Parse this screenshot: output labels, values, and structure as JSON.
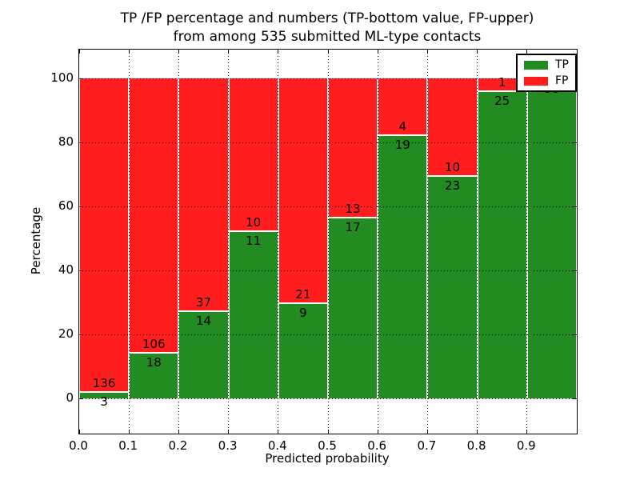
{
  "chart": {
    "title_line1": "TP /FP percentage and numbers (TP-bottom value, FP-upper)",
    "title_line2": "from among 535 submitted ML-type contacts",
    "xlabel": "Predicted probability",
    "ylabel": "Percentage"
  },
  "chart_data": {
    "type": "bar",
    "stacked": true,
    "normalized_to_percent": true,
    "title": "TP /FP percentage and numbers (TP-bottom value, FP-upper) from among 535 submitted ML-type contacts",
    "xlabel": "Predicted probability",
    "ylabel": "Percentage",
    "total_contacts": 535,
    "bins": [
      "0.0-0.1",
      "0.1-0.2",
      "0.2-0.3",
      "0.3-0.4",
      "0.4-0.5",
      "0.5-0.6",
      "0.6-0.7",
      "0.7-0.8",
      "0.8-0.9",
      "0.9-1.0"
    ],
    "x_start": [
      0.0,
      0.1,
      0.2,
      0.3,
      0.4,
      0.5,
      0.6,
      0.7,
      0.8,
      0.9
    ],
    "bar_width": 0.1,
    "series": [
      {
        "name": "TP",
        "color": "#228B22",
        "counts": [
          3,
          18,
          14,
          11,
          9,
          17,
          19,
          23,
          25,
          58
        ],
        "percent": [
          2.16,
          14.52,
          27.45,
          52.38,
          30.0,
          56.67,
          82.61,
          69.7,
          96.15,
          100.0
        ]
      },
      {
        "name": "FP",
        "color": "#FF1D1D",
        "counts": [
          136,
          106,
          37,
          10,
          21,
          13,
          4,
          10,
          1,
          0
        ],
        "percent": [
          97.84,
          85.48,
          72.55,
          47.62,
          70.0,
          43.33,
          17.39,
          30.3,
          3.85,
          0.0
        ]
      }
    ],
    "label_note": "FP count printed above TP/FP boundary, TP count below",
    "xlim": [
      0.0,
      1.0
    ],
    "ylim": [
      -11,
      109
    ],
    "yticks": [
      0,
      20,
      40,
      60,
      80,
      100
    ],
    "xtick_labels": [
      "0.0",
      "0.1",
      "0.2",
      "0.3",
      "0.4",
      "0.5",
      "0.6",
      "0.7",
      "0.8",
      "0.9"
    ],
    "grid": "dotted",
    "legend": {
      "position": "upper right",
      "entries": [
        {
          "label": "TP",
          "color": "#228B22"
        },
        {
          "label": "FP",
          "color": "#FF1D1D"
        }
      ]
    }
  }
}
